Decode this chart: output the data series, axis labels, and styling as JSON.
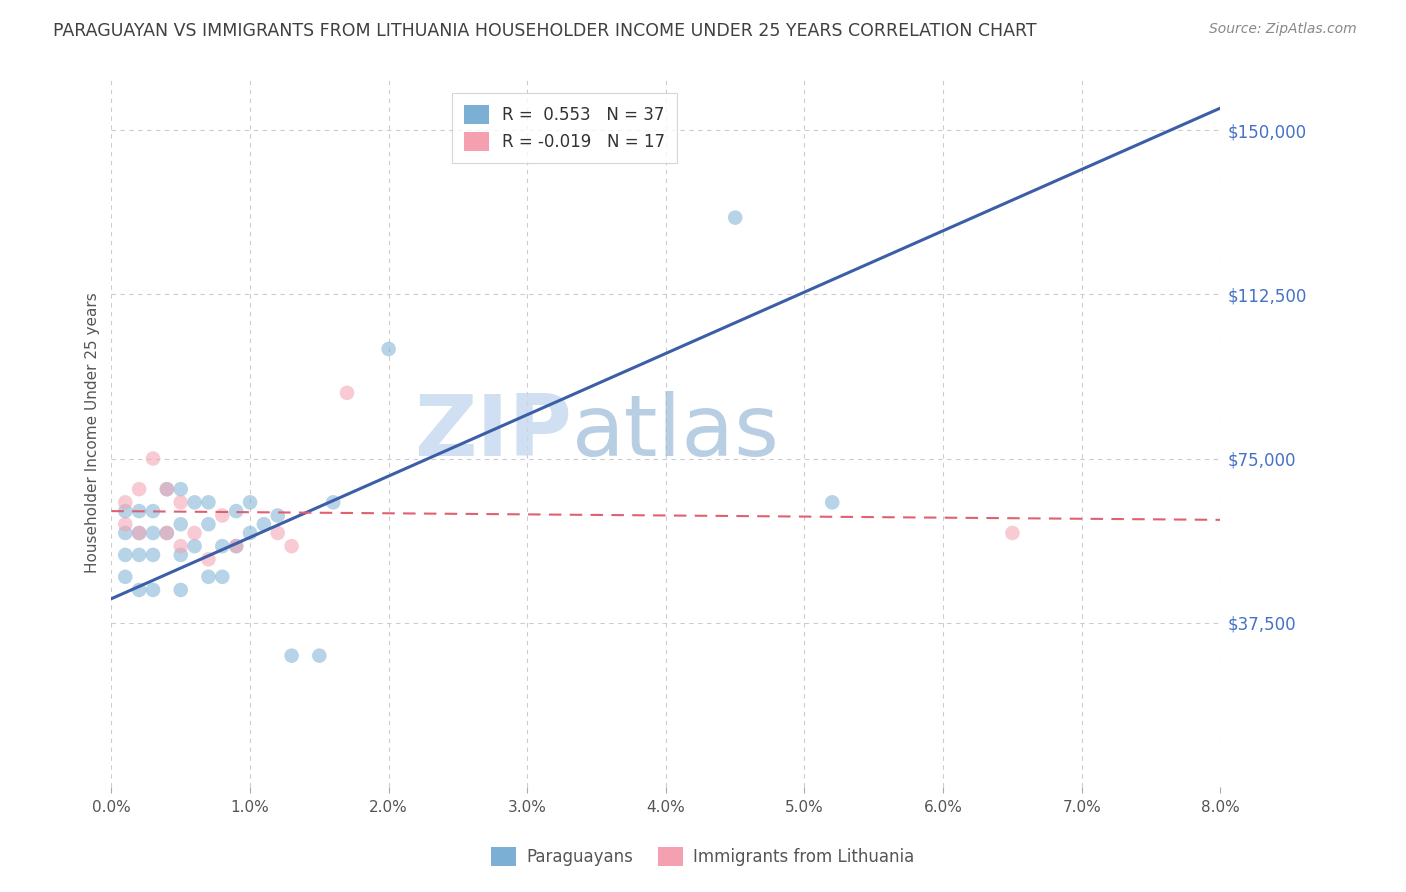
{
  "title": "PARAGUAYAN VS IMMIGRANTS FROM LITHUANIA HOUSEHOLDER INCOME UNDER 25 YEARS CORRELATION CHART",
  "source": "Source: ZipAtlas.com",
  "ylabel": "Householder Income Under 25 years",
  "yticks": [
    0,
    37500,
    75000,
    112500,
    150000
  ],
  "ytick_labels": [
    "",
    "$37,500",
    "$75,000",
    "$112,500",
    "$150,000"
  ],
  "xlim": [
    0.0,
    0.08
  ],
  "ylim": [
    0,
    162000
  ],
  "blue_scatter_x": [
    0.001,
    0.001,
    0.001,
    0.001,
    0.002,
    0.002,
    0.002,
    0.002,
    0.003,
    0.003,
    0.003,
    0.003,
    0.004,
    0.004,
    0.005,
    0.005,
    0.005,
    0.005,
    0.006,
    0.006,
    0.007,
    0.007,
    0.007,
    0.008,
    0.008,
    0.009,
    0.009,
    0.01,
    0.01,
    0.011,
    0.012,
    0.013,
    0.015,
    0.016,
    0.02,
    0.045,
    0.052
  ],
  "blue_scatter_y": [
    63000,
    58000,
    53000,
    48000,
    63000,
    58000,
    53000,
    45000,
    63000,
    58000,
    53000,
    45000,
    68000,
    58000,
    68000,
    60000,
    53000,
    45000,
    65000,
    55000,
    65000,
    60000,
    48000,
    55000,
    48000,
    63000,
    55000,
    65000,
    58000,
    60000,
    62000,
    30000,
    30000,
    65000,
    100000,
    130000,
    65000
  ],
  "pink_scatter_x": [
    0.001,
    0.001,
    0.002,
    0.002,
    0.003,
    0.004,
    0.004,
    0.005,
    0.005,
    0.006,
    0.007,
    0.008,
    0.009,
    0.012,
    0.013,
    0.017,
    0.065
  ],
  "pink_scatter_y": [
    65000,
    60000,
    68000,
    58000,
    75000,
    68000,
    58000,
    65000,
    55000,
    58000,
    52000,
    62000,
    55000,
    58000,
    55000,
    90000,
    58000
  ],
  "blue_line_x": [
    0.0,
    0.08
  ],
  "blue_line_y": [
    43000,
    155000
  ],
  "pink_line_x": [
    0.0,
    0.08
  ],
  "pink_line_y": [
    63000,
    61000
  ],
  "watermark_zip": "ZIP",
  "watermark_atlas": "atlas",
  "scatter_size": 110,
  "scatter_alpha": 0.55,
  "blue_color": "#7bafd4",
  "pink_color": "#f4a0b0",
  "blue_line_color": "#3b5ea6",
  "pink_line_color": "#e06070",
  "title_color": "#404040",
  "source_color": "#888888",
  "axis_color": "#4472c4",
  "grid_color": "#cccccc",
  "legend_r1": "R =  0.553   N = 37",
  "legend_r2": "R = -0.019   N = 17",
  "legend_r1_val": "0.553",
  "legend_r2_val": "-0.019",
  "bottom_label1": "Paraguayans",
  "bottom_label2": "Immigrants from Lithuania"
}
